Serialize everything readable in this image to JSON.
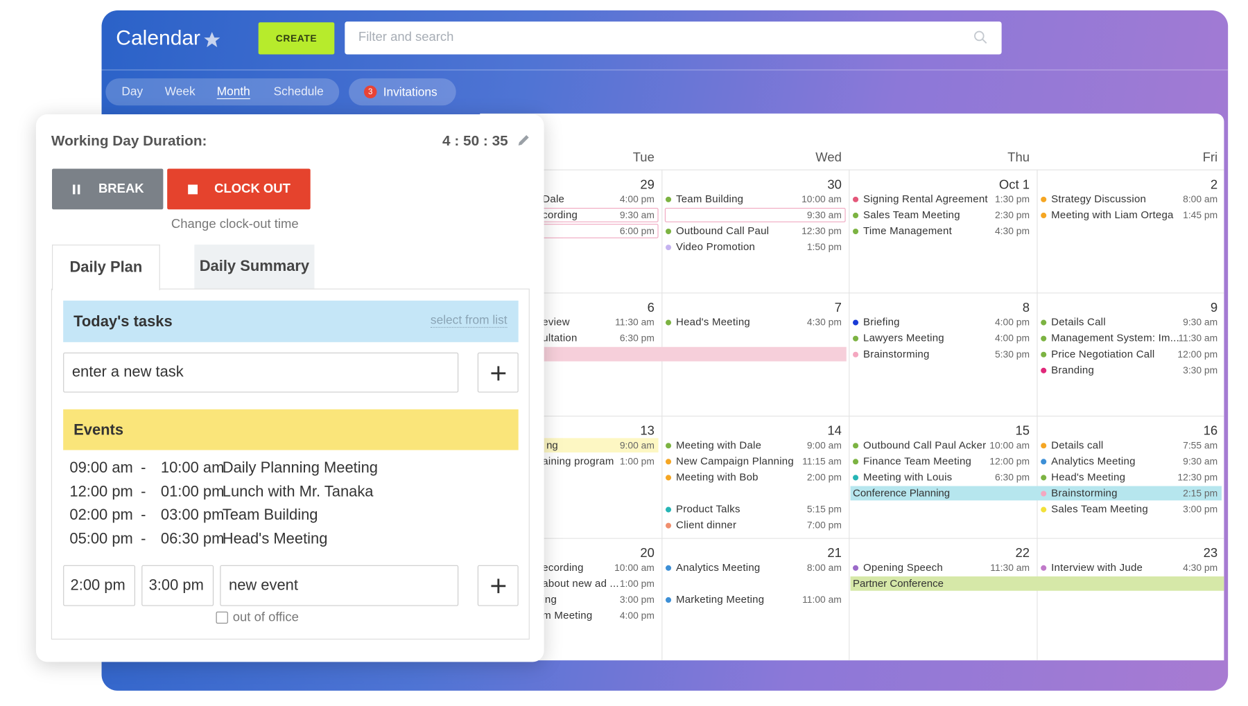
{
  "header": {
    "title": "Calendar",
    "create": "CREATE",
    "search_placeholder": "Filter and search"
  },
  "views": [
    "Day",
    "Week",
    "Month",
    "Schedule"
  ],
  "invitations": {
    "count": "3",
    "label": "Invitations"
  },
  "calendar": {
    "days": [
      "Tue",
      "Wed",
      "Thu",
      "Fri"
    ],
    "weeks": [
      [
        {
          "date": "29",
          "events": [
            {
              "title": "Dale",
              "time": "4:00 pm"
            },
            {
              "title": "cording",
              "time": "9:30 am",
              "color": "#f0a7c0",
              "outline": true
            },
            {
              "time": "6:00 pm",
              "color": "#f0a7c0",
              "outline": true
            }
          ]
        },
        {
          "date": "30",
          "events": [
            {
              "title": "Team Building",
              "time": "10:00 am",
              "color": "#7cb342"
            },
            {
              "time": "9:30 am",
              "color": "#f0a7c0",
              "outline": true
            },
            {
              "title": "Outbound Call Paul",
              "time": "12:30 pm",
              "color": "#7cb342"
            },
            {
              "title": "Video Promotion",
              "time": "1:50 pm",
              "color": "#c5b3f0"
            }
          ]
        },
        {
          "date": "Oct 1",
          "events": [
            {
              "title": "Signing Rental Agreement",
              "time": "1:30 pm",
              "color": "#e4587a"
            },
            {
              "title": "Sales Team Meeting",
              "time": "2:30 pm",
              "color": "#7cb342"
            },
            {
              "title": "Time Management",
              "time": "4:30 pm",
              "color": "#7cb342"
            }
          ]
        },
        {
          "date": "2",
          "events": [
            {
              "title": "Strategy Discussion",
              "time": "8:00 am",
              "color": "#f5a623"
            },
            {
              "title": "Meeting with Liam Ortega",
              "time": "1:45 pm",
              "color": "#f5a623"
            }
          ]
        }
      ],
      [
        {
          "date": "6",
          "events": [
            {
              "title": "eview",
              "time": "11:30 am"
            },
            {
              "title": "ultation",
              "time": "6:30 pm"
            }
          ]
        },
        {
          "date": "7",
          "events": [
            {
              "title": "Head's Meeting",
              "time": "4:30 pm",
              "color": "#7cb342"
            }
          ]
        },
        {
          "date": "8",
          "events": [
            {
              "title": "Briefing",
              "time": "4:00 pm",
              "color": "#1a3bd6"
            },
            {
              "title": "Lawyers Meeting",
              "time": "4:00 pm",
              "color": "#7cb342"
            },
            {
              "title": "Brainstorming",
              "time": "5:30 pm",
              "color": "#f4a7c0"
            }
          ]
        },
        {
          "date": "9",
          "events": [
            {
              "title": "Details Call",
              "time": "9:30 am",
              "color": "#7cb342"
            },
            {
              "title": "Management System: Im...",
              "time": "11:30 am",
              "color": "#7cb342"
            },
            {
              "title": "Price Negotiation Call",
              "time": "12:00 pm",
              "color": "#7cb342"
            },
            {
              "title": "Branding",
              "time": "3:30 pm",
              "color": "#e0287a"
            }
          ]
        }
      ],
      [
        {
          "date": "13",
          "events": [
            {
              "time": "9:00 am"
            },
            {
              "title": "aining program",
              "time": "1:00 pm"
            }
          ]
        },
        {
          "date": "14",
          "events": [
            {
              "title": "Meeting with Dale",
              "time": "9:00 am",
              "color": "#7cb342"
            },
            {
              "title": "New Campaign Planning",
              "time": "11:15 am",
              "color": "#f5a623"
            },
            {
              "title": "Meeting with Bob",
              "time": "2:00 pm",
              "color": "#f5a623"
            },
            {
              "title": "Product Talks",
              "time": "5:15 pm",
              "color": "#26b5b5"
            },
            {
              "title": "Client dinner",
              "time": "7:00 pm",
              "color": "#f08f6e"
            }
          ]
        },
        {
          "date": "15",
          "events": [
            {
              "title": "Outbound Call Paul Acker",
              "time": "10:00 am",
              "color": "#7cb342"
            },
            {
              "title": "Finance Team Meeting",
              "time": "12:00 pm",
              "color": "#7cb342"
            },
            {
              "title": "Meeting with Louis",
              "time": "6:30 pm",
              "color": "#26b5b5"
            }
          ]
        },
        {
          "date": "16",
          "events": [
            {
              "title": "Details call",
              "time": "7:55 am",
              "color": "#f5a623"
            },
            {
              "title": "Analytics Meeting",
              "time": "9:30 am",
              "color": "#3d8fd6"
            },
            {
              "title": "Head's Meeting",
              "time": "12:30 pm",
              "color": "#7cb342"
            },
            {
              "title": "Brainstorming",
              "time": "2:15 pm",
              "color": "#f4a7c0"
            },
            {
              "title": "Sales Team Meeting",
              "time": "3:00 pm",
              "color": "#f2e13a"
            }
          ]
        }
      ],
      [
        {
          "date": "20",
          "events": [
            {
              "title": "ecording",
              "time": "10:00 am"
            },
            {
              "title": "about new ad ...",
              "time": "1:00 pm"
            },
            {
              "title": "ing",
              "time": "3:00 pm"
            },
            {
              "title": "m Meeting",
              "time": "4:00 pm"
            }
          ]
        },
        {
          "date": "21",
          "events": [
            {
              "title": "Analytics Meeting",
              "time": "8:00 am",
              "color": "#3d8fd6"
            },
            {
              "title": "Marketing Meeting",
              "time": "11:00 am",
              "color": "#3d8fd6"
            }
          ]
        },
        {
          "date": "22",
          "events": [
            {
              "title": "Opening Speech",
              "time": "11:30 am",
              "color": "#9b6ac9"
            }
          ]
        },
        {
          "date": "23",
          "events": [
            {
              "title": "Interview with Jude",
              "time": "4:30 pm",
              "color": "#c07ac9"
            }
          ]
        }
      ]
    ],
    "bars": [
      {
        "color": "#f6cfda"
      },
      {
        "label": "ng",
        "color": "#fdf7c3"
      },
      {
        "label": "Conference Planning",
        "color": "#b6e6ee"
      },
      {
        "label": "Partner Conference",
        "color": "#d6e8a8"
      }
    ]
  },
  "panel": {
    "title": "Working Day Duration:",
    "timer": "4 : 50 : 35",
    "break": "BREAK",
    "clock_out": "CLOCK OUT",
    "change_time": "Change clock-out time",
    "tabs": [
      "Daily Plan",
      "Daily Summary"
    ],
    "tasks": {
      "title": "Today's tasks",
      "link": "select from list",
      "placeholder": "enter a new task"
    },
    "events": {
      "title": "Events",
      "items": [
        {
          "start": "09:00 am",
          "end": "10:00 am",
          "title": "Daily Planning Meeting"
        },
        {
          "start": "12:00 pm",
          "end": "01:00 pm",
          "title": "Lunch with Mr. Tanaka"
        },
        {
          "start": "02:00 pm",
          "end": "03:00 pm",
          "title": "Team Building"
        },
        {
          "start": "05:00 pm",
          "end": "06:30 pm",
          "title": "Head's Meeting"
        }
      ]
    },
    "new_event": {
      "start": "2:00 pm",
      "end": "3:00 pm",
      "title": "new event",
      "out_of_office": "out of office"
    }
  }
}
